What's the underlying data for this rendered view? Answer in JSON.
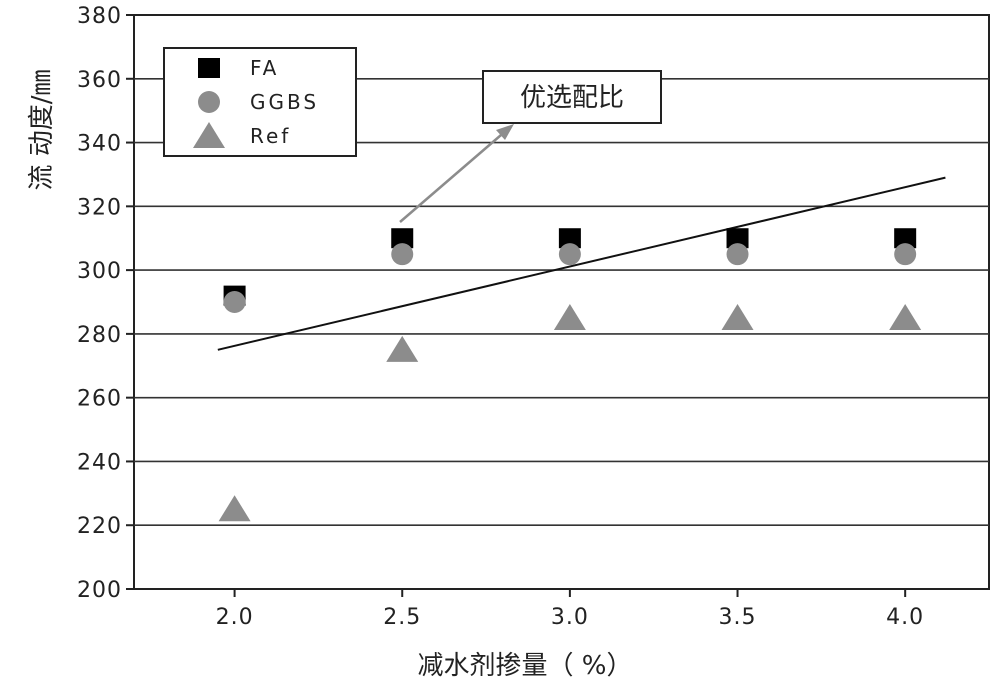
{
  "chart_data": {
    "type": "scatter",
    "title": "",
    "xlabel": "减水剂掺量（ %）",
    "ylabel": "流 动度/㎜",
    "xlim": [
      1.7,
      4.25
    ],
    "ylim": [
      200,
      380
    ],
    "x_ticks": [
      "2.0",
      "2.5",
      "3.0",
      "3.5",
      "4.0"
    ],
    "y_ticks": [
      "200",
      "220",
      "240",
      "260",
      "280",
      "300",
      "320",
      "340",
      "360",
      "380"
    ],
    "grid": "horizontal",
    "legend_position": "top-left",
    "series": [
      {
        "name": "FA",
        "marker": "square",
        "color": "#000000",
        "x": [
          2.0,
          2.5,
          3.0,
          3.5,
          4.0
        ],
        "y": [
          292,
          310,
          310,
          310,
          310
        ]
      },
      {
        "name": "GGBS",
        "marker": "circle",
        "color": "#8c8c8c",
        "x": [
          2.0,
          2.5,
          3.0,
          3.5,
          4.0
        ],
        "y": [
          290,
          305,
          305,
          305,
          305
        ]
      },
      {
        "name": "Ref",
        "marker": "triangle",
        "color": "#8c8c8c",
        "x": [
          2.0,
          2.5,
          3.0,
          3.5,
          4.0
        ],
        "y": [
          225,
          275,
          285,
          285,
          285
        ]
      }
    ],
    "trendline": {
      "x": [
        1.95,
        4.12
      ],
      "y": [
        275,
        329
      ]
    },
    "annotation": {
      "text": "优选配比",
      "points_to": {
        "x": 2.5,
        "y": 310
      }
    }
  }
}
